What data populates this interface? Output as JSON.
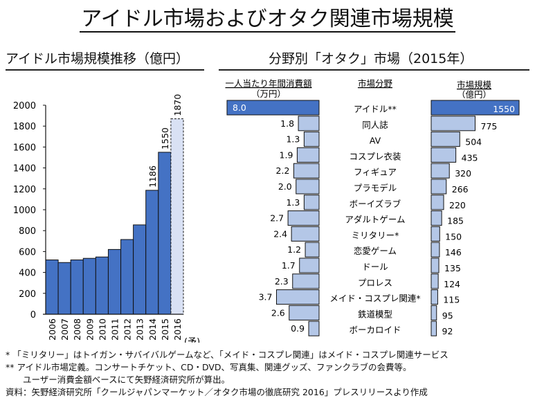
{
  "title": "アイドル市場およびオタク関連市場規模",
  "left_section_title": "アイドル市場規模推移（億円）",
  "right_section_title": "分野別「オタク」市場（2015年）",
  "chart_data": [
    {
      "type": "bar",
      "title": "アイドル市場規模推移（億円）",
      "xlabel": "",
      "ylabel": "億円",
      "ylim": [
        0,
        2000
      ],
      "yticks": [
        0,
        200,
        400,
        600,
        800,
        1000,
        1200,
        1400,
        1600,
        1800,
        2000
      ],
      "categories": [
        "2006",
        "2007",
        "2008",
        "2009",
        "2010",
        "2011",
        "2012",
        "2013",
        "2014",
        "2015",
        "2016"
      ],
      "values": [
        520,
        495,
        520,
        535,
        548,
        620,
        715,
        855,
        1186,
        1550,
        1870
      ],
      "data_labels": {
        "2014": "1186",
        "2015": "1550",
        "2016": "1870"
      },
      "forecast_suffix": "(予)",
      "forecast_categories": [
        "2016"
      ],
      "colors": {
        "actual": "#4472c4",
        "forecast": "#d9e1f4",
        "border": "#111111"
      },
      "grid": false
    },
    {
      "type": "bar",
      "orientation": "horizontal-butterfly",
      "title": "分野別「オタク」市場（2015年）",
      "left_header": "一人当たり年間消費額",
      "left_unit": "（万円）",
      "center_header": "市場分野",
      "right_header": "市場規模",
      "right_unit": "（億円）",
      "categories": [
        "アイドル**",
        "同人誌",
        "AV",
        "コスプレ衣装",
        "フィギュア",
        "プラモデル",
        "ボーイズラブ",
        "アダルトゲーム",
        "ミリタリー*",
        "恋愛ゲーム",
        "ドール",
        "プロレス",
        "メイド・コスプレ関連*",
        "鉄道模型",
        "ボーカロイド"
      ],
      "series": [
        {
          "name": "一人当たり年間消費額（万円）",
          "values": [
            8.0,
            1.8,
            1.3,
            1.9,
            2.2,
            2.0,
            1.3,
            2.7,
            2.4,
            1.2,
            1.7,
            2.3,
            3.7,
            2.6,
            0.9
          ],
          "labels": [
            "8.0",
            "1.8",
            "1.3",
            "1.9",
            "2.2",
            "2.0",
            "1.3",
            "2.7",
            "2.4",
            "1.2",
            "1.7",
            "2.3",
            "3.7",
            "2.6",
            "0.9"
          ]
        },
        {
          "name": "市場規模（億円）",
          "values": [
            1550,
            775,
            504,
            435,
            320,
            266,
            220,
            185,
            150,
            146,
            135,
            124,
            115,
            95,
            92
          ],
          "labels": [
            "1550",
            "775",
            "504",
            "435",
            "320",
            "266",
            "220",
            "185",
            "150",
            "146",
            "135",
            "124",
            "115",
            "95",
            "92"
          ]
        }
      ],
      "xlim_left": [
        0,
        8.0
      ],
      "xlim_right": [
        0,
        1550
      ],
      "colors": {
        "highlight": "#4472c4",
        "normal": "#b4c7e7",
        "border": "#111111",
        "highlight_label": "#ffffff"
      }
    }
  ],
  "notes": [
    "* 「ミリタリー」はトイガン・サバイバルゲームなど、「メイド・コスプレ関連」はメイド・コスプレ関連サービス",
    "** アイドル市場定義。コンサートチケット、CD・DVD、写真集、関連グッズ、ファンクラブの会費等。",
    "　　ユーザー消費金額ベースにて矢野経済研究所が算出。",
    "資料：矢野経済研究所「クールジャパンマーケット／オタク市場の徹底研究 2016」プレスリリースより作成"
  ]
}
